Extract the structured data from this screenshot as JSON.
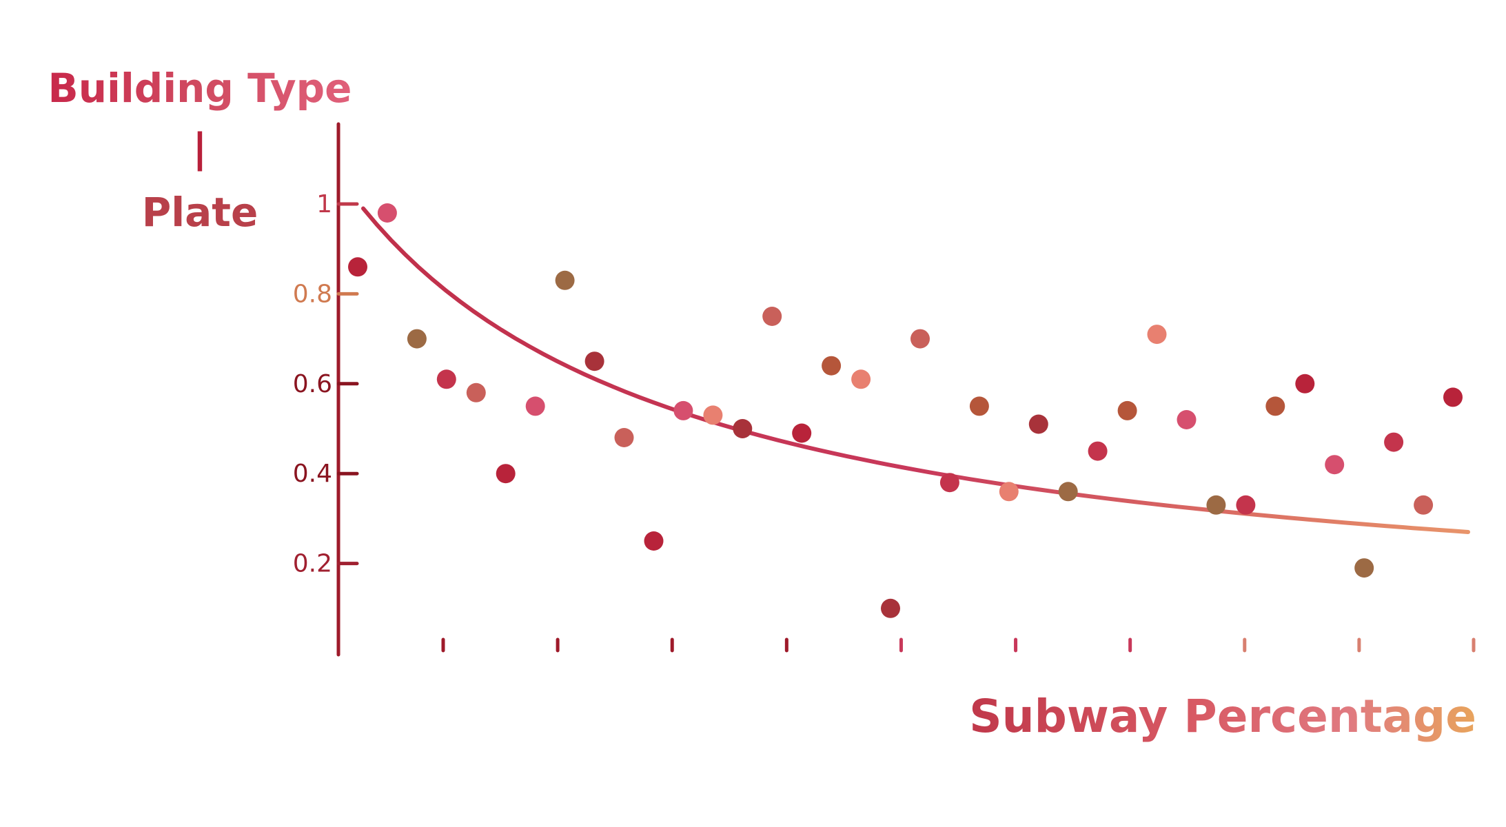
{
  "chart_data": {
    "type": "scatter",
    "ylabel_lines": [
      "Building Type",
      "|",
      "Plate"
    ],
    "xlabel": "Subway Percentage",
    "ylim": [
      0,
      1
    ],
    "y_ticks": [
      {
        "value": 1.0,
        "label": "1"
      },
      {
        "value": 0.8,
        "label": "0.8"
      },
      {
        "value": 0.6,
        "label": "0.6"
      },
      {
        "value": 0.4,
        "label": "0.4"
      },
      {
        "value": 0.2,
        "label": "0.2"
      }
    ],
    "x_tick_count": 10,
    "x_tick_labels_shown": false,
    "grid": false,
    "legend": "none",
    "points": [
      {
        "y": 0.86
      },
      {
        "y": 0.98
      },
      {
        "y": 0.7
      },
      {
        "y": 0.61
      },
      {
        "y": 0.58
      },
      {
        "y": 0.4
      },
      {
        "y": 0.55
      },
      {
        "y": 0.83
      },
      {
        "y": 0.65
      },
      {
        "y": 0.48
      },
      {
        "y": 0.25
      },
      {
        "y": 0.54
      },
      {
        "y": 0.53
      },
      {
        "y": 0.5
      },
      {
        "y": 0.75
      },
      {
        "y": 0.49
      },
      {
        "y": 0.64
      },
      {
        "y": 0.61
      },
      {
        "y": 0.1
      },
      {
        "y": 0.7
      },
      {
        "y": 0.38
      },
      {
        "y": 0.55
      },
      {
        "y": 0.36
      },
      {
        "y": 0.51
      },
      {
        "y": 0.36
      },
      {
        "y": 0.45
      },
      {
        "y": 0.54
      },
      {
        "y": 0.71
      },
      {
        "y": 0.52
      },
      {
        "y": 0.33
      },
      {
        "y": 0.33
      },
      {
        "y": 0.55
      },
      {
        "y": 0.6
      },
      {
        "y": 0.42
      },
      {
        "y": 0.19
      },
      {
        "y": 0.47
      },
      {
        "y": 0.33
      },
      {
        "y": 0.57
      }
    ],
    "trend_line": {
      "type": "decreasing curve",
      "start_y": 0.99,
      "end_y": 0.27
    },
    "colors": {
      "gradient": [
        "#9e1a2a",
        "#c8385a",
        "#e27a6a",
        "#e8a45c"
      ],
      "point_palette": [
        "#b8233a",
        "#c4344c",
        "#a8323a",
        "#d64f6e",
        "#b5563a",
        "#c9605a",
        "#9c6a44",
        "#e88070"
      ]
    }
  }
}
